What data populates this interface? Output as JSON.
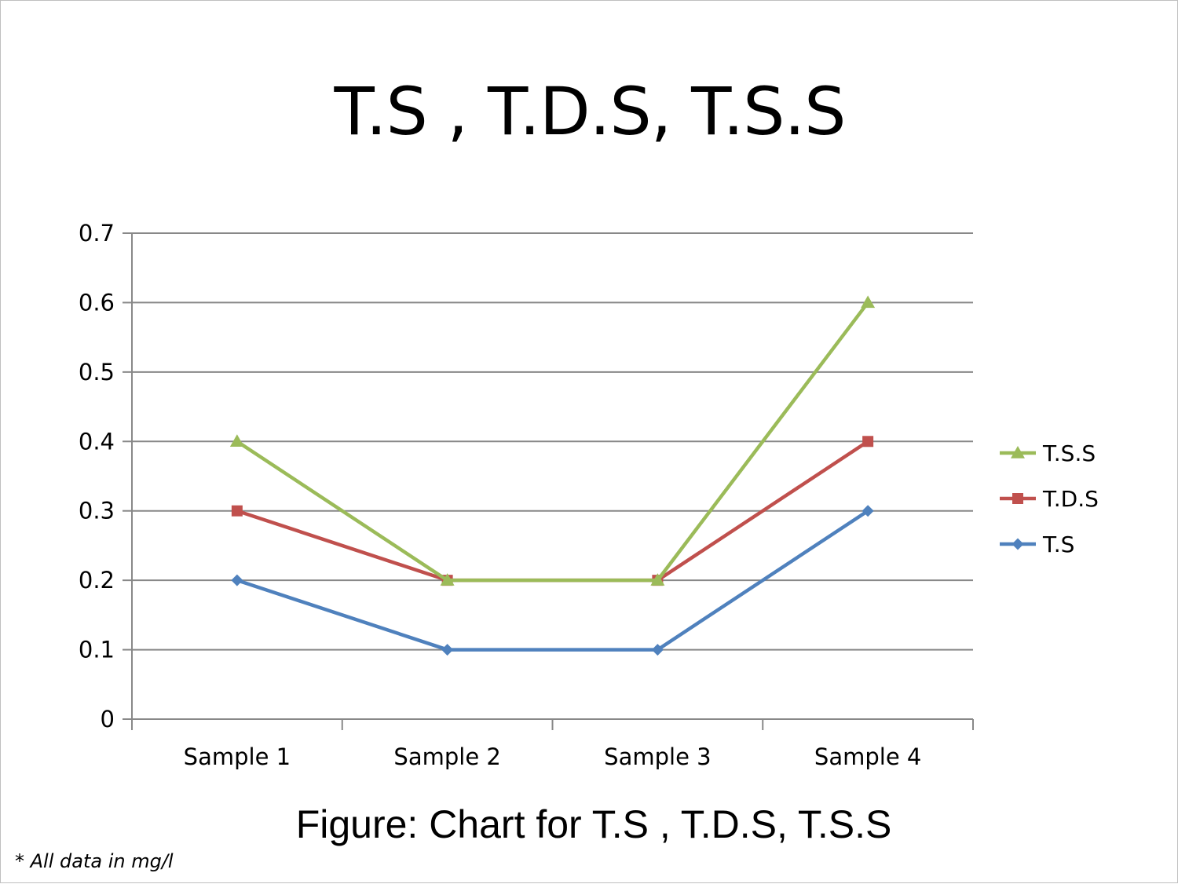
{
  "chart_data": {
    "type": "line",
    "title": "T.S , T.D.S, T.S.S",
    "categories": [
      "Sample 1",
      "Sample 2",
      "Sample 3",
      "Sample 4"
    ],
    "series": [
      {
        "name": "T.S.S",
        "values": [
          0.4,
          0.2,
          0.2,
          0.6
        ],
        "color": "#9bbb59",
        "marker": "triangle"
      },
      {
        "name": "T.D.S",
        "values": [
          0.3,
          0.2,
          0.2,
          0.4
        ],
        "color": "#c0504d",
        "marker": "square"
      },
      {
        "name": "T.S",
        "values": [
          0.2,
          0.1,
          0.1,
          0.3
        ],
        "color": "#4f81bd",
        "marker": "diamond"
      }
    ],
    "ylim": [
      0,
      0.7
    ],
    "yticks": [
      "0",
      "0.1",
      "0.2",
      "0.3",
      "0.4",
      "0.5",
      "0.6",
      "0.7"
    ],
    "xlabel": "",
    "ylabel": "",
    "grid": true,
    "legend": "right"
  },
  "caption": "Figure:  Chart  for T.S , T.D.S, T.S.S",
  "footnote": "* All data in mg/l"
}
